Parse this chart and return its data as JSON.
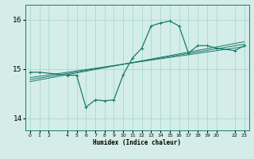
{
  "xlabel": "Humidex (Indice chaleur)",
  "background_color": "#d4ede8",
  "line_color": "#1a7a6e",
  "grid_color": "#aad8d0",
  "ylim": [
    13.75,
    16.3
  ],
  "xlim": [
    -0.5,
    23.5
  ],
  "yticks": [
    14,
    15,
    16
  ],
  "xticks": [
    0,
    1,
    2,
    4,
    5,
    6,
    7,
    8,
    9,
    10,
    11,
    12,
    13,
    14,
    15,
    16,
    17,
    18,
    19,
    20,
    22,
    23
  ],
  "series": {
    "main": {
      "x": [
        0,
        1,
        4,
        5,
        6,
        7,
        8,
        9,
        10,
        11,
        12,
        13,
        14,
        15,
        16,
        17,
        18,
        19,
        20,
        22,
        23
      ],
      "y": [
        14.93,
        14.93,
        14.87,
        14.87,
        14.22,
        14.37,
        14.35,
        14.37,
        14.88,
        15.22,
        15.42,
        15.87,
        15.93,
        15.97,
        15.87,
        15.32,
        15.47,
        15.47,
        15.42,
        15.37,
        15.47
      ]
    },
    "linear1": {
      "x": [
        0,
        23
      ],
      "y": [
        14.82,
        15.45
      ]
    },
    "linear2": {
      "x": [
        0,
        23
      ],
      "y": [
        14.78,
        15.5
      ]
    },
    "linear3": {
      "x": [
        0,
        23
      ],
      "y": [
        14.74,
        15.55
      ]
    }
  }
}
